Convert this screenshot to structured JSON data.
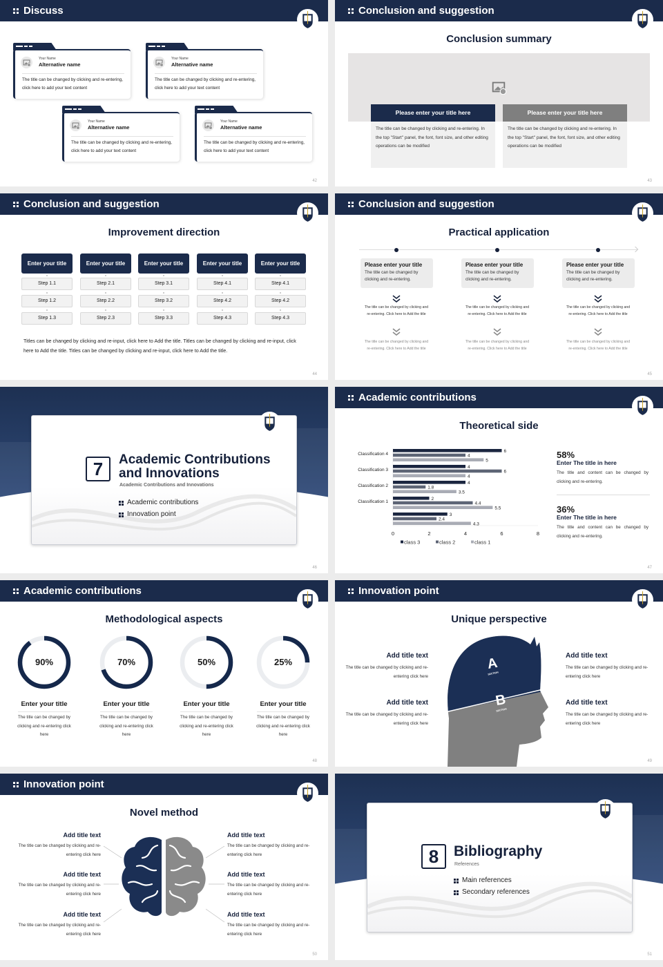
{
  "colors": {
    "navy": "#1b2b4b",
    "gray": "#808080",
    "light_gray": "#ececec"
  },
  "slides": [
    {
      "page": "42",
      "header": "Discuss",
      "cards": [
        {
          "label": "Your Name",
          "name": "Alternative name",
          "text": "The title can be changed by clicking and re-entering, click here to add your text content"
        },
        {
          "label": "Your Name",
          "name": "Alternative name",
          "text": "The title can be changed by clicking and re-entering, click here to add your text content"
        },
        {
          "label": "Your Name",
          "name": "Alternative name",
          "text": "The title can be changed by clicking and re-entering, click here to add your text content"
        },
        {
          "label": "Your Name",
          "name": "Alternative name",
          "text": "The title can be changed by clicking and re-entering, click here to add your text content"
        }
      ]
    },
    {
      "page": "43",
      "header": "Conclusion and suggestion",
      "title": "Conclusion summary",
      "boxes": [
        {
          "title": "Please enter your title here",
          "text": "The title can be changed by clicking and re-entering. In the top \"Start\" panel, the font, font size, and other editing operations can be modified"
        },
        {
          "title": "Please enter your title here",
          "text": "The title can be changed by clicking and re-entering. In the top \"Start\" panel, the font, font size, and other editing operations can be modified"
        }
      ]
    },
    {
      "page": "44",
      "header": "Conclusion and suggestion",
      "title": "Improvement direction",
      "columns": [
        {
          "title": "Enter your title",
          "steps": [
            "Step 1.1",
            "Step 1.2",
            "Step 1.3"
          ]
        },
        {
          "title": "Enter your title",
          "steps": [
            "Step 2.1",
            "Step 2.2",
            "Step 2.3"
          ]
        },
        {
          "title": "Enter your title",
          "steps": [
            "Step 3.1",
            "Step 3.2",
            "Step 3.3"
          ]
        },
        {
          "title": "Enter your title",
          "steps": [
            "Step 4.1",
            "Step 4.2",
            "Step 4.3"
          ]
        },
        {
          "title": "Enter your title",
          "steps": [
            "Step 4.1",
            "Step 4.2",
            "Step 4.3"
          ]
        }
      ],
      "paragraph": "Titles can be changed by clicking and re-input, click here to Add the title. Titles can be changed by clicking and re-input, click here to Add the title. Titles can be changed by clicking and re-input, click here to Add the title."
    },
    {
      "page": "45",
      "header": "Conclusion and suggestion",
      "title": "Practical application",
      "items": [
        {
          "title": "Please enter your title",
          "text": "The title can be changed by clicking and re-entering.",
          "step1": "The title can be changed by clicking and re-entering. Click here to Add the title",
          "step2": "The title can be changed by clicking and re-entering. Click here to Add the title"
        },
        {
          "title": "Please enter your title",
          "text": "The title can be changed by clicking and re-entering.",
          "step1": "The title can be changed by clicking and re-entering. Click here to Add the title",
          "step2": "The title can be changed by clicking and re-entering. Click here to Add the title"
        },
        {
          "title": "Please enter your title",
          "text": "The title can be changed by clicking and re-entering.",
          "step1": "The title can be changed by clicking and re-entering. Click here to Add the title",
          "step2": "The title can be changed by clicking and re-entering. Click here to Add the title"
        }
      ]
    },
    {
      "page": "46",
      "number": "7",
      "title_line1": "Academic Contributions",
      "title_line2": "and Innovations",
      "subtitle": "Academic Contributions and Innovations",
      "bullets": [
        "Academic contributions",
        "Innovation point"
      ]
    },
    {
      "page": "47",
      "header": "Academic contributions",
      "title": "Theoretical side",
      "stats": [
        {
          "value": "58%",
          "title": "Enter The title in here",
          "text": "The title and content can be changed by clicking and re-entering."
        },
        {
          "value": "36%",
          "title": "Enter The title in here",
          "text": "The title and content can be changed by clicking and re-entering."
        }
      ]
    },
    {
      "page": "48",
      "header": "Academic contributions",
      "title": "Methodological aspects",
      "items": [
        {
          "percent_label": "90%",
          "percent": 90,
          "title": "Enter your title",
          "text": "The title can be changed by clicking and re-entering click here"
        },
        {
          "percent_label": "70%",
          "percent": 70,
          "title": "Enter your title",
          "text": "The title can be changed by clicking and re-entering click here"
        },
        {
          "percent_label": "50%",
          "percent": 50,
          "title": "Enter your title",
          "text": "The title can be changed by clicking and re-entering click here"
        },
        {
          "percent_label": "25%",
          "percent": 25,
          "title": "Enter your title",
          "text": "The title can be changed by clicking and re-entering click here"
        }
      ]
    },
    {
      "page": "49",
      "header": "Innovation point",
      "title": "Unique perspective",
      "head_sections": [
        {
          "letter": "A",
          "label": "SECTION"
        },
        {
          "letter": "B",
          "label": "SECTION"
        }
      ],
      "left": [
        {
          "title": "Add title text",
          "text": "The title can be changed by clicking and re-entering click here"
        },
        {
          "title": "Add title text",
          "text": "The title can be changed by clicking and re-entering click here"
        }
      ],
      "right": [
        {
          "title": "Add title text",
          "text": "The title can be changed by clicking and re-entering click here"
        },
        {
          "title": "Add title text",
          "text": "The title can be changed by clicking and re-entering click here"
        }
      ]
    },
    {
      "page": "50",
      "header": "Innovation point",
      "title": "Novel method",
      "left": [
        {
          "title": "Add title text",
          "text": "The title can be changed by clicking and re-entering click here"
        },
        {
          "title": "Add title text",
          "text": "The title can be changed by clicking and re-entering click here"
        },
        {
          "title": "Add title text",
          "text": "The title can be changed by clicking and re-entering click here"
        }
      ],
      "right": [
        {
          "title": "Add title text",
          "text": "The title can be changed by clicking and re-entering click here"
        },
        {
          "title": "Add title text",
          "text": "The title can be changed by clicking and re-entering click here"
        },
        {
          "title": "Add title text",
          "text": "The title can be changed by clicking and re-entering click here"
        }
      ]
    },
    {
      "page": "51",
      "number": "8",
      "title": "Bibliography",
      "subtitle": "References",
      "bullets": [
        "Main references",
        "Secondary references"
      ]
    }
  ],
  "chart_data": {
    "type": "bar",
    "orientation": "horizontal",
    "categories": [
      "Classification 4",
      "Classification 3",
      "Classification 2",
      "Classification 1",
      ""
    ],
    "series": [
      {
        "name": "class 3",
        "color": "#1b2640",
        "values": [
          6,
          4,
          4,
          2,
          3
        ]
      },
      {
        "name": "class 2",
        "color": "#5d6475",
        "values": [
          4,
          6,
          1.8,
          4.4,
          2.4
        ]
      },
      {
        "name": "class 1",
        "color": "#a9acb5",
        "values": [
          5,
          4,
          3.5,
          5.5,
          4.3
        ]
      }
    ],
    "xlim": [
      0,
      8
    ],
    "xticks": [
      "0",
      "2",
      "4",
      "6",
      "8"
    ],
    "data_labels": true,
    "legend": "bottom",
    "grid": false
  }
}
